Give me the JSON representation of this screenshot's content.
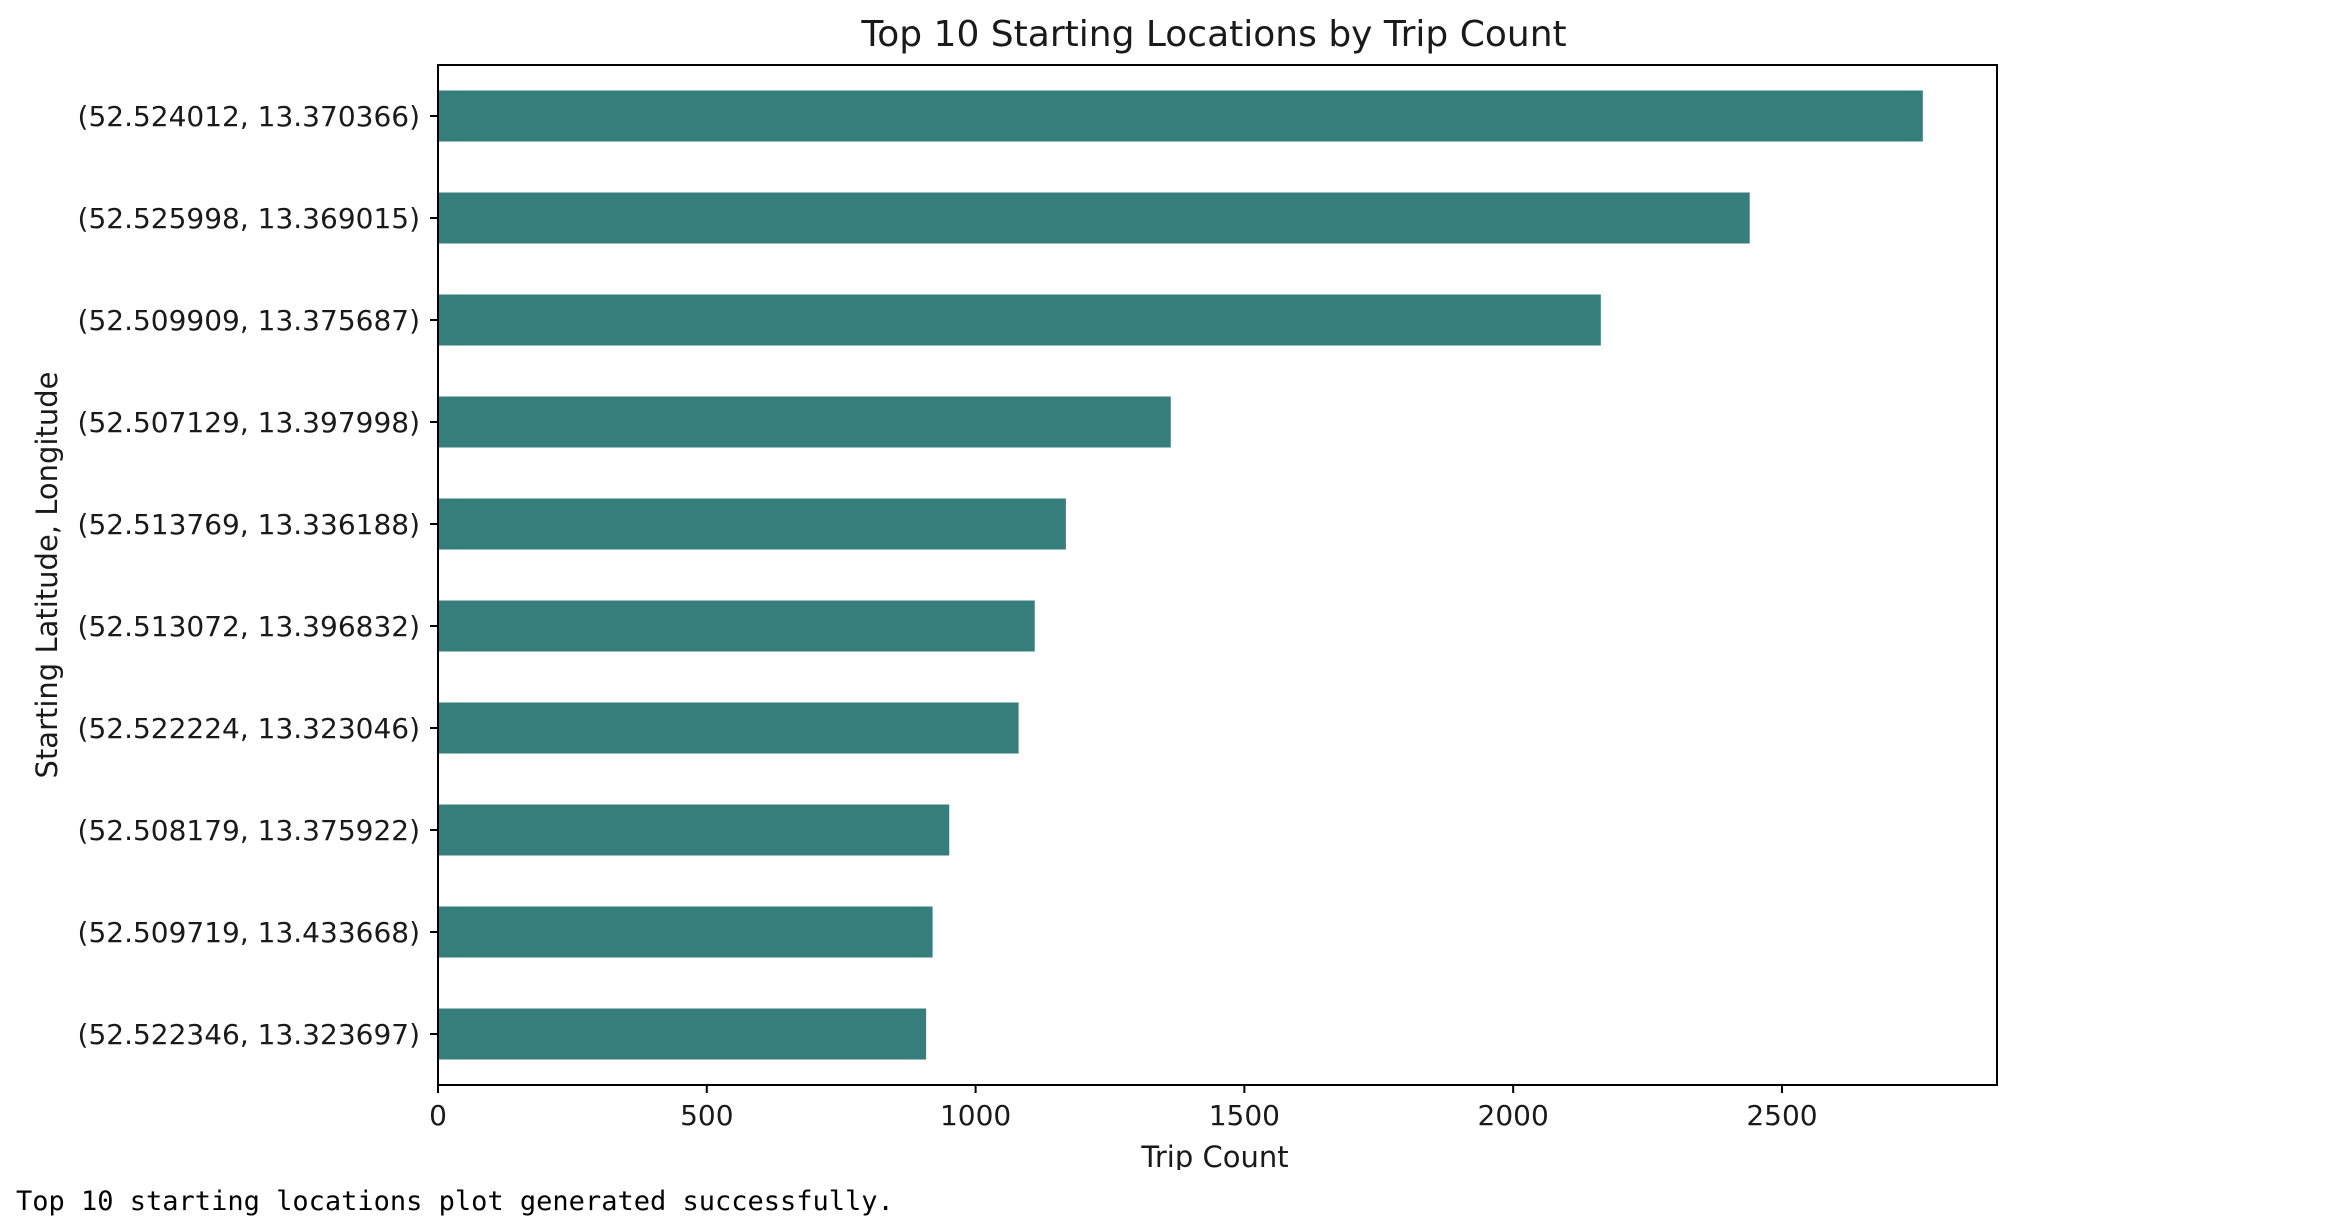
{
  "chart_data": {
    "type": "bar",
    "orientation": "horizontal",
    "title": "Top 10 Starting Locations by Trip Count",
    "xlabel": "Trip Count",
    "ylabel": "Starting Latitude, Longitude",
    "categories": [
      "(52.524012, 13.370366)",
      "(52.525998, 13.369015)",
      "(52.509909, 13.375687)",
      "(52.507129, 13.397998)",
      "(52.513769, 13.336188)",
      "(52.513072, 13.396832)",
      "(52.522224, 13.323046)",
      "(52.508179, 13.375922)",
      "(52.509719, 13.433668)",
      "(52.522346, 13.323697)"
    ],
    "values": [
      2762,
      2440,
      2163,
      1363,
      1168,
      1110,
      1080,
      951,
      920,
      908
    ],
    "xlim": [
      0,
      2900
    ],
    "xticks": [
      "0",
      "500",
      "1000",
      "1500",
      "2000",
      "2500"
    ],
    "bar_color": "#367e7c",
    "grid": false,
    "legend": false
  },
  "output": {
    "message": "Top 10 starting locations plot generated successfully."
  }
}
